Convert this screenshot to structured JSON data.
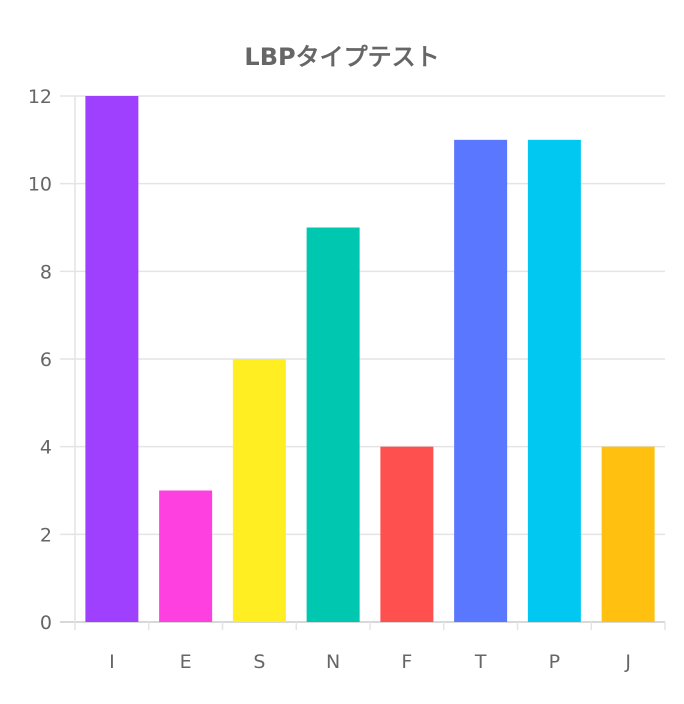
{
  "chart_data": {
    "type": "bar",
    "title": "LBPタイプテスト",
    "xlabel": "",
    "ylabel": "",
    "categories": [
      "I",
      "E",
      "S",
      "N",
      "F",
      "T",
      "P",
      "J"
    ],
    "values": [
      12,
      3,
      6,
      9,
      4,
      11,
      11,
      4
    ],
    "colors": [
      "#a040ff",
      "#ff40e0",
      "#ffee22",
      "#00c8b0",
      "#ff5050",
      "#5a78ff",
      "#00c8f0",
      "#ffc010"
    ],
    "ylim": [
      0,
      12
    ],
    "yticks": [
      "0",
      "2",
      "4",
      "6",
      "8",
      "10",
      "12"
    ],
    "grid": true,
    "legend": "none"
  }
}
